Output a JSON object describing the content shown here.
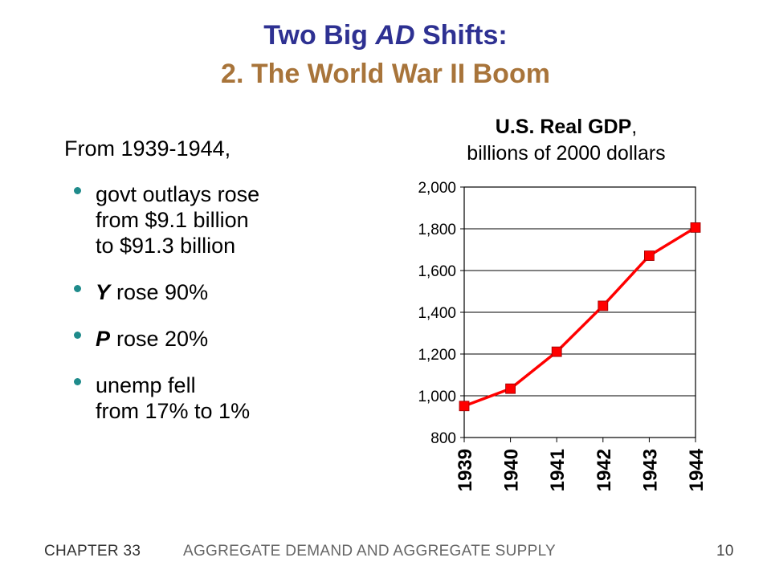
{
  "title": {
    "line1_pre": "Two Big ",
    "line1_ital": "AD",
    "line1_post": " Shifts:",
    "line2": "2.  The World War II Boom"
  },
  "intro": "From 1939-1944,",
  "bullets": {
    "outlays": [
      "govt outlays rose",
      "from $9.1 billion",
      "to $91.3 billion"
    ],
    "y_var": "Y",
    "y_text": "rose 90%",
    "p_var": "P",
    "p_text": "rose 20%",
    "unemp": [
      "unemp fell",
      "from 17% to 1%"
    ]
  },
  "chart_title": {
    "bold": "U.S. Real GDP",
    "rest": ",",
    "line2": "billions of 2000 dollars"
  },
  "chart_data": {
    "type": "line",
    "title": "U.S. Real GDP, billions of 2000 dollars",
    "categories": [
      "1939",
      "1940",
      "1941",
      "1942",
      "1943",
      "1944"
    ],
    "series": [
      {
        "values": [
          951,
          1034,
          1211,
          1431,
          1671,
          1806
        ]
      }
    ],
    "ylim": [
      800,
      2000
    ],
    "yticks": [
      "800",
      "1,000",
      "1,200",
      "1,400",
      "1,600",
      "1,800",
      "2,000"
    ],
    "grid": true,
    "color": "#ff0000"
  },
  "footer": {
    "chapter": "CHAPTER 33",
    "title": "AGGREGATE DEMAND AND AGGREGATE SUPPLY",
    "page": "10"
  }
}
